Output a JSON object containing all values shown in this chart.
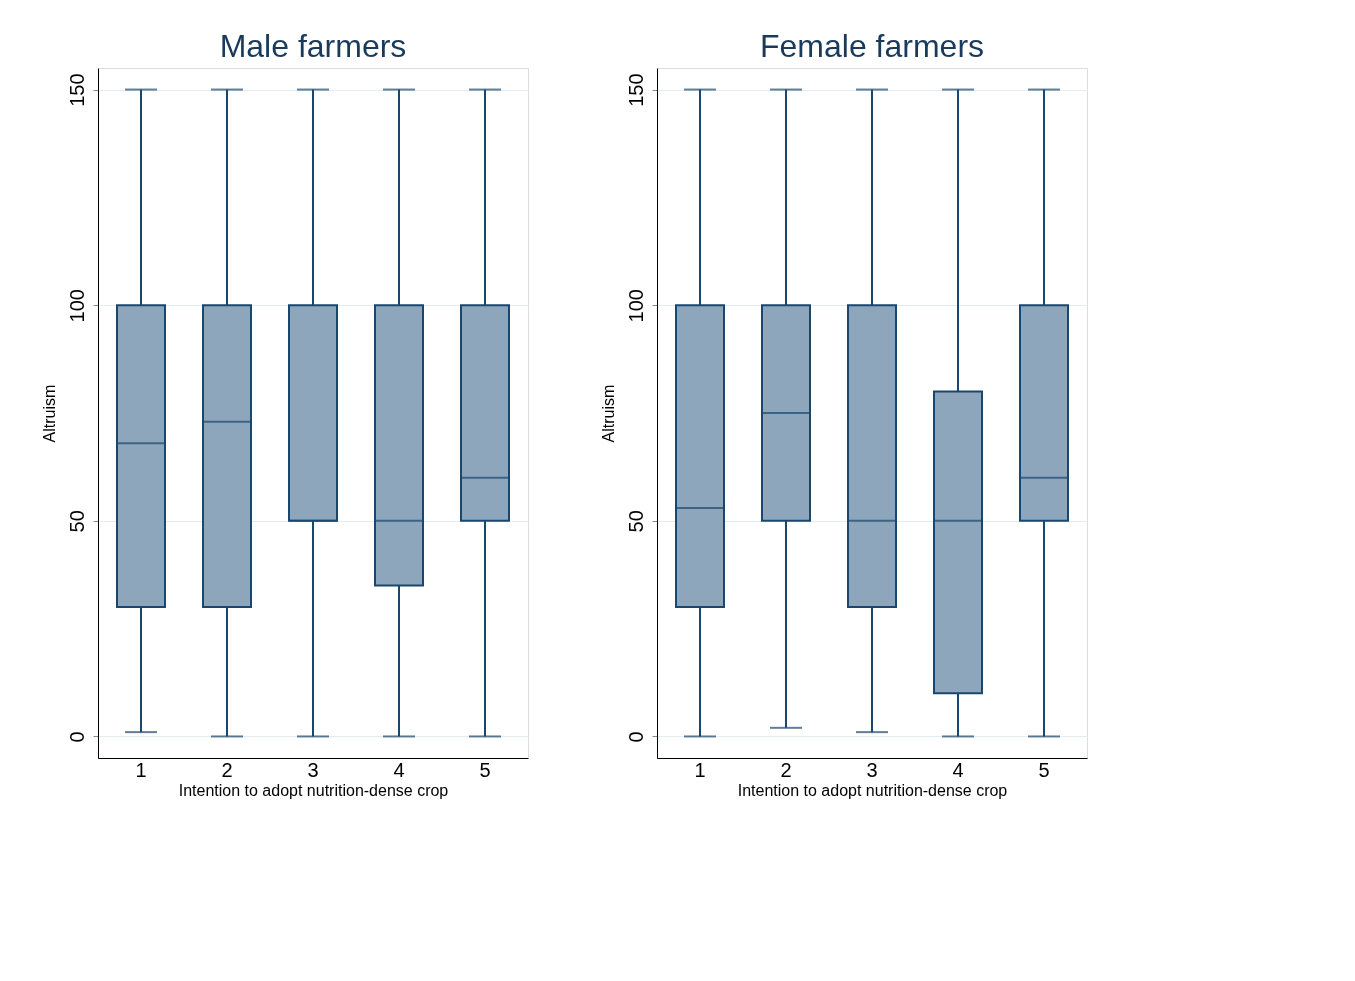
{
  "chart_data": [
    {
      "type": "box",
      "title": "Male farmers",
      "xlabel": "Intention to adopt nutrition-dense crop",
      "ylabel": "Altruism",
      "categories": [
        "1",
        "2",
        "3",
        "4",
        "5"
      ],
      "ylim": [
        -5,
        155
      ],
      "yticks": [
        0,
        50,
        100,
        150
      ],
      "grid": "y",
      "series": [
        {
          "color": "#8ea6bb",
          "boxes": [
            {
              "low": 1,
              "q1": 30,
              "median": 68,
              "q3": 100,
              "high": 150
            },
            {
              "low": 0,
              "q1": 30,
              "median": 73,
              "q3": 100,
              "high": 150
            },
            {
              "low": 0,
              "q1": 50,
              "median": 50,
              "q3": 100,
              "high": 150
            },
            {
              "low": 0,
              "q1": 35,
              "median": 50,
              "q3": 100,
              "high": 150
            },
            {
              "low": 0,
              "q1": 50,
              "median": 60,
              "q3": 100,
              "high": 150
            }
          ]
        }
      ]
    },
    {
      "type": "box",
      "title": "Female farmers",
      "xlabel": "Intention to adopt nutrition-dense crop",
      "ylabel": "Altruism",
      "categories": [
        "1",
        "2",
        "3",
        "4",
        "5"
      ],
      "ylim": [
        -5,
        155
      ],
      "yticks": [
        0,
        50,
        100,
        150
      ],
      "grid": "y",
      "series": [
        {
          "color": "#8ea6bb",
          "boxes": [
            {
              "low": 0,
              "q1": 30,
              "median": 53,
              "q3": 100,
              "high": 150
            },
            {
              "low": 2,
              "q1": 50,
              "median": 75,
              "q3": 100,
              "high": 150
            },
            {
              "low": 1,
              "q1": 30,
              "median": 50,
              "q3": 100,
              "high": 150
            },
            {
              "low": 0,
              "q1": 10,
              "median": 50,
              "q3": 80,
              "high": 150
            },
            {
              "low": 0,
              "q1": 50,
              "median": 60,
              "q3": 100,
              "high": 150
            }
          ]
        }
      ]
    }
  ]
}
